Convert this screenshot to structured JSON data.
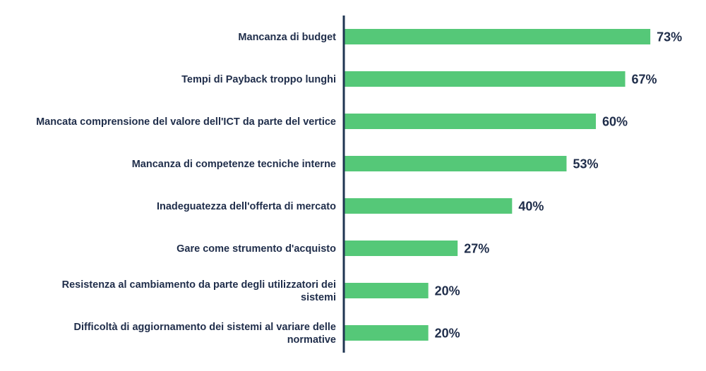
{
  "chart_data": {
    "type": "bar",
    "orientation": "horizontal",
    "categories": [
      [
        "Mancanza di budget"
      ],
      [
        "Tempi di Payback troppo lunghi"
      ],
      [
        "Mancata comprensione del valore dell'ICT da parte del vertice"
      ],
      [
        "Mancanza di competenze tecniche interne"
      ],
      [
        "Inadeguatezza dell'offerta di mercato"
      ],
      [
        "Gare come strumento d'acquisto"
      ],
      [
        "Resistenza al cambiamento da parte degli utilizzatori dei",
        "sistemi"
      ],
      [
        "Difficoltà di aggiornamento dei sistemi al variare delle",
        "normative"
      ]
    ],
    "values": [
      73,
      67,
      60,
      53,
      40,
      27,
      20,
      20
    ],
    "value_labels": [
      "73%",
      "67%",
      "60%",
      "53%",
      "40%",
      "27%",
      "20%",
      "20%"
    ],
    "xlim": [
      0,
      75
    ],
    "grid": false,
    "legend": "none",
    "colors": {
      "bar": "#55c878",
      "axis": "#1f3552",
      "text": "#1f2d4a"
    }
  }
}
